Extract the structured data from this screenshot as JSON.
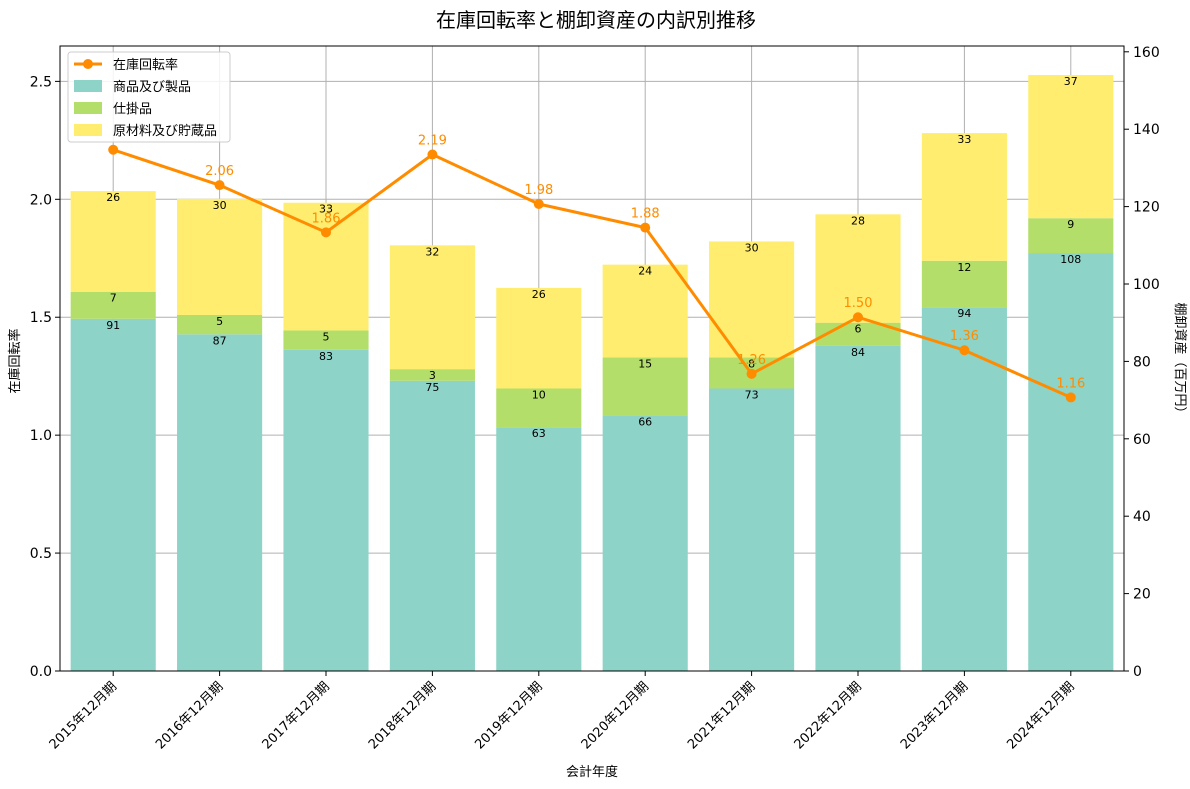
{
  "chart_data": {
    "type": "bar",
    "title": "在庫回転率と棚卸資産の内訳別推移",
    "xlabel": "会計年度",
    "ylabel_left": "在庫回転率",
    "ylabel_right": "棚卸資産（百万円）",
    "categories": [
      "2015年12月期",
      "2016年12月期",
      "2017年12月期",
      "2018年12月期",
      "2019年12月期",
      "2020年12月期",
      "2021年12月期",
      "2022年12月期",
      "2023年12月期",
      "2024年12月期"
    ],
    "stacked_series": [
      {
        "name": "商品及び製品",
        "color": "#8dd3c7",
        "values": [
          91,
          87,
          83,
          75,
          63,
          66,
          73,
          84,
          94,
          108
        ]
      },
      {
        "name": "仕掛品",
        "color": "#b3de69",
        "values": [
          7,
          5,
          5,
          3,
          10,
          15,
          8,
          6,
          12,
          9
        ]
      },
      {
        "name": "原材料及び貯蔵品",
        "color": "#ffed6f",
        "values": [
          26,
          30,
          33,
          32,
          26,
          24,
          30,
          28,
          33,
          37
        ]
      }
    ],
    "line_series": {
      "name": "在庫回転率",
      "color": "#ff8c00",
      "values": [
        2.21,
        2.06,
        1.86,
        2.19,
        1.98,
        1.88,
        1.26,
        1.5,
        1.36,
        1.16
      ],
      "labels": [
        "",
        "2.06",
        "1.86",
        "2.19",
        "1.98",
        "1.88",
        "1.26",
        "1.50",
        "1.36",
        "1.16"
      ]
    },
    "ylim_left": [
      0,
      2.65
    ],
    "yticks_left": [
      "0.0",
      "0.5",
      "1.0",
      "1.5",
      "2.0",
      "2.5"
    ],
    "ylim_right": [
      0,
      161.5
    ],
    "yticks_right": [
      "0",
      "20",
      "40",
      "60",
      "80",
      "100",
      "120",
      "140",
      "160"
    ],
    "grid": true,
    "legend_position": "top-left"
  }
}
